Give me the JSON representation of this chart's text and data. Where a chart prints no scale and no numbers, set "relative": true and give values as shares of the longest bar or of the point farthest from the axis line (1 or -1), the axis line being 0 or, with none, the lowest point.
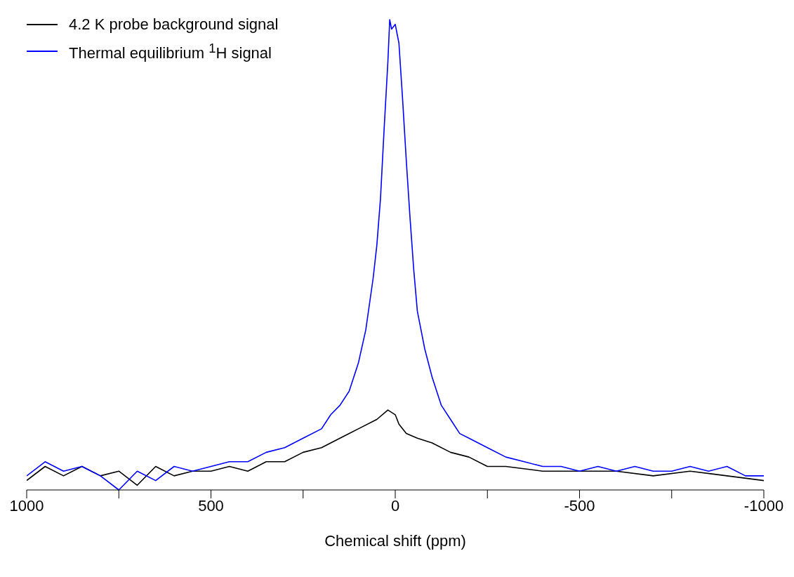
{
  "chart_data": {
    "type": "line",
    "xlabel": "Chemical shift (ppm)",
    "relative": true,
    "legend": "top left",
    "grid": false,
    "marker": "none",
    "line_style": "solid",
    "xlim": [
      1000,
      -1000
    ],
    "xticks": [
      1000,
      {
        "value": 750,
        "label": null
      },
      500,
      {
        "value": 250,
        "label": null
      },
      0,
      {
        "value": -250,
        "label": null
      },
      -500,
      {
        "value": -750,
        "label": null
      },
      -1000
    ],
    "series": [
      {
        "name": "4.2 K probe background signal",
        "color": "#000000",
        "x": [
          1000,
          950,
          900,
          850,
          800,
          750,
          700,
          650,
          600,
          550,
          500,
          450,
          400,
          350,
          300,
          250,
          200,
          150,
          100,
          50,
          20,
          0,
          -10,
          -30,
          -60,
          -100,
          -150,
          -200,
          -250,
          -300,
          -400,
          -500,
          -600,
          -700,
          -800,
          -900,
          -1000
        ],
        "values": [
          0.02,
          0.05,
          0.03,
          0.05,
          0.03,
          0.04,
          0.01,
          0.05,
          0.03,
          0.04,
          0.04,
          0.05,
          0.04,
          0.06,
          0.06,
          0.08,
          0.09,
          0.11,
          0.13,
          0.15,
          0.17,
          0.16,
          0.14,
          0.12,
          0.11,
          0.1,
          0.08,
          0.07,
          0.05,
          0.05,
          0.04,
          0.04,
          0.04,
          0.03,
          0.04,
          0.03,
          0.02
        ]
      },
      {
        "name": "Thermal equilibrium $^{1}$H signal",
        "color": "#0000ff",
        "x": [
          1000,
          950,
          900,
          850,
          800,
          750,
          700,
          650,
          600,
          550,
          500,
          450,
          400,
          350,
          300,
          250,
          200,
          175,
          150,
          125,
          100,
          80,
          60,
          50,
          40,
          30,
          20,
          15,
          10,
          0,
          -10,
          -20,
          -30,
          -40,
          -50,
          -60,
          -80,
          -100,
          -125,
          -150,
          -175,
          -200,
          -250,
          -300,
          -350,
          -400,
          -450,
          -500,
          -550,
          -600,
          -650,
          -700,
          -750,
          -800,
          -850,
          -900,
          -950,
          -1000
        ],
        "values": [
          0.03,
          0.06,
          0.04,
          0.05,
          0.03,
          0.0,
          0.04,
          0.02,
          0.05,
          0.04,
          0.05,
          0.06,
          0.06,
          0.08,
          0.09,
          0.11,
          0.13,
          0.16,
          0.18,
          0.21,
          0.27,
          0.34,
          0.45,
          0.52,
          0.62,
          0.77,
          0.91,
          1.0,
          0.98,
          0.99,
          0.95,
          0.83,
          0.7,
          0.58,
          0.47,
          0.38,
          0.3,
          0.24,
          0.18,
          0.15,
          0.12,
          0.11,
          0.09,
          0.07,
          0.06,
          0.05,
          0.05,
          0.04,
          0.05,
          0.04,
          0.05,
          0.04,
          0.04,
          0.05,
          0.04,
          0.05,
          0.03,
          0.03
        ]
      }
    ]
  }
}
